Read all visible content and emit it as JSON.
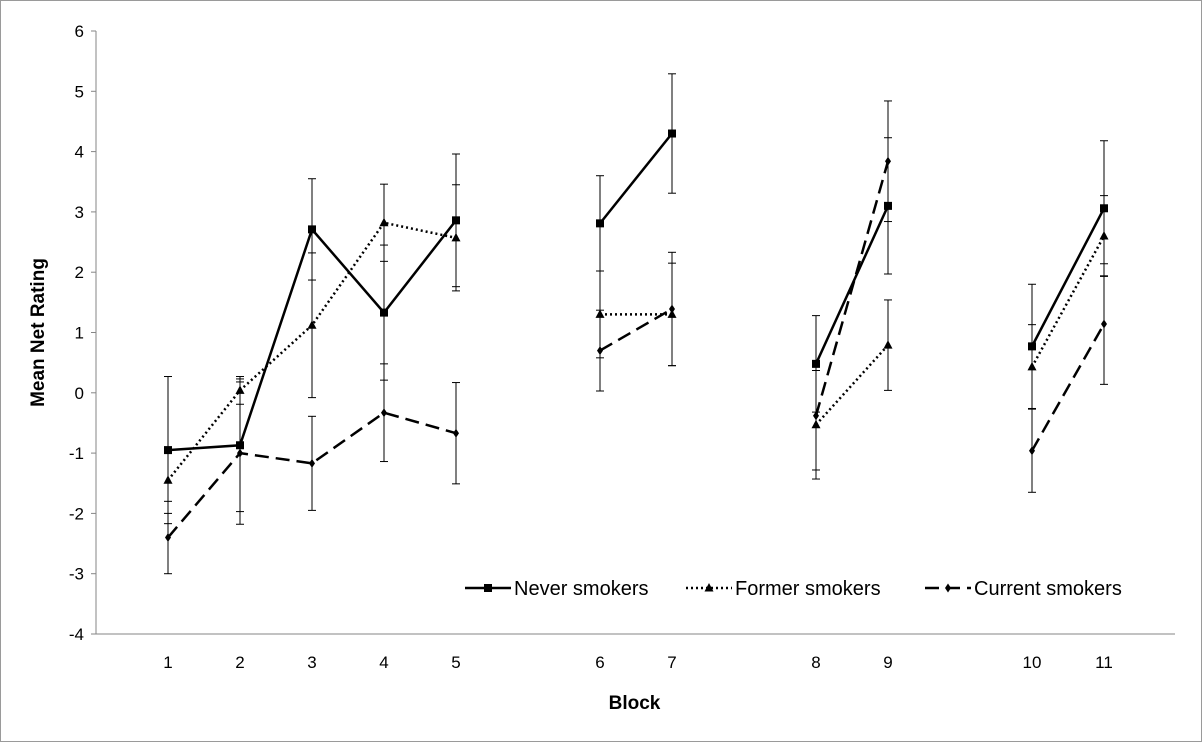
{
  "chart_data": {
    "type": "line",
    "title": "",
    "xlabel": "Block",
    "ylabel": "Mean Net Rating",
    "ylim": [
      -4,
      6
    ],
    "yticks": [
      "-4",
      "-3",
      "-2",
      "-1",
      "0",
      "1",
      "2",
      "3",
      "4",
      "5",
      "6"
    ],
    "categories": [
      "1",
      "2",
      "3",
      "4",
      "5",
      "6",
      "7",
      "8",
      "9",
      "10",
      "11"
    ],
    "segments": [
      [
        1,
        2,
        3,
        4,
        5
      ],
      [
        6,
        7
      ],
      [
        8,
        9
      ],
      [
        10,
        11
      ]
    ],
    "grid": false,
    "legend_position": "bottom-right",
    "series": [
      {
        "name": "Never smokers",
        "style": "solid",
        "marker": "square",
        "color": "#000000",
        "values": [
          -0.95,
          -0.87,
          2.71,
          1.33,
          2.86,
          2.81,
          4.3,
          0.48,
          3.1,
          0.77,
          3.06
        ],
        "errors": [
          1.22,
          1.1,
          0.84,
          1.12,
          1.1,
          0.79,
          0.99,
          0.8,
          1.13,
          1.03,
          1.12
        ]
      },
      {
        "name": "Former smokers",
        "style": "dotted",
        "marker": "triangle",
        "color": "#000000",
        "values": [
          -1.45,
          0.04,
          1.12,
          2.82,
          2.57,
          1.3,
          1.3,
          -0.53,
          0.79,
          0.43,
          2.6
        ],
        "errors": [
          0.55,
          0.23,
          1.2,
          0.64,
          0.88,
          0.72,
          0.85,
          0.9,
          0.75,
          0.7,
          0.67
        ]
      },
      {
        "name": "Current smokers",
        "style": "dashed",
        "marker": "diamond",
        "color": "#000000",
        "values": [
          -2.4,
          -1.0,
          -1.17,
          -0.33,
          -0.67,
          0.7,
          1.39,
          -0.38,
          3.84,
          -0.96,
          1.14
        ],
        "errors": [
          0.6,
          1.18,
          0.78,
          0.81,
          0.84,
          0.67,
          0.94,
          0.9,
          1.0,
          0.69,
          1.0
        ]
      }
    ]
  }
}
